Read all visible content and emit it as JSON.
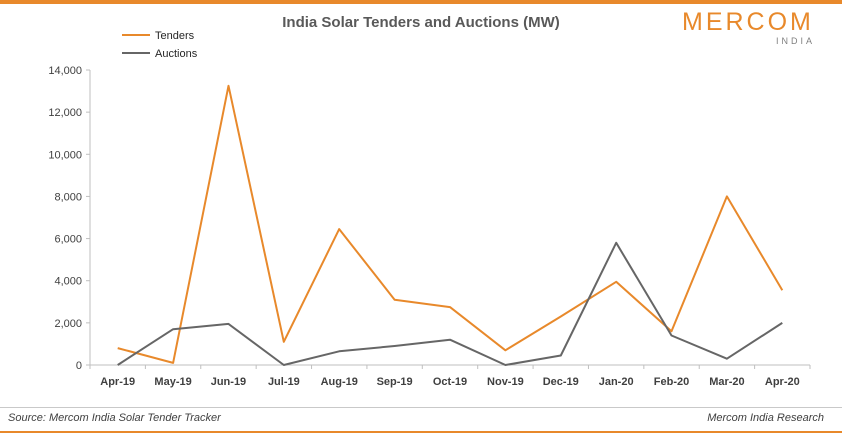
{
  "header": {
    "logo_main": "MERCOM",
    "logo_sub": "INDIA"
  },
  "footer": {
    "source": "Source: Mercom India Solar Tender Tracker",
    "credit": "Mercom India Research"
  },
  "colors": {
    "accent": "#e8892b",
    "tenders": "#e8892b",
    "auctions": "#666666"
  },
  "chart_data": {
    "type": "line",
    "title": "India Solar Tenders and Auctions (MW)",
    "categories": [
      "Apr-19",
      "May-19",
      "Jun-19",
      "Jul-19",
      "Aug-19",
      "Sep-19",
      "Oct-19",
      "Nov-19",
      "Dec-19",
      "Jan-20",
      "Feb-20",
      "Mar-20",
      "Apr-20"
    ],
    "series": [
      {
        "name": "Tenders",
        "values": [
          800,
          100,
          13250,
          1100,
          6450,
          3100,
          2750,
          700,
          2300,
          3950,
          1600,
          8000,
          3550
        ]
      },
      {
        "name": "Auctions",
        "values": [
          0,
          1700,
          1950,
          0,
          650,
          900,
          1200,
          0,
          450,
          5800,
          1400,
          300,
          2000
        ]
      }
    ],
    "yticks": [
      "0",
      "2,000",
      "4,000",
      "6,000",
      "8,000",
      "10,000",
      "12,000",
      "14,000"
    ],
    "ylim": [
      0,
      14000
    ],
    "grid": false,
    "legend": "top-left"
  }
}
